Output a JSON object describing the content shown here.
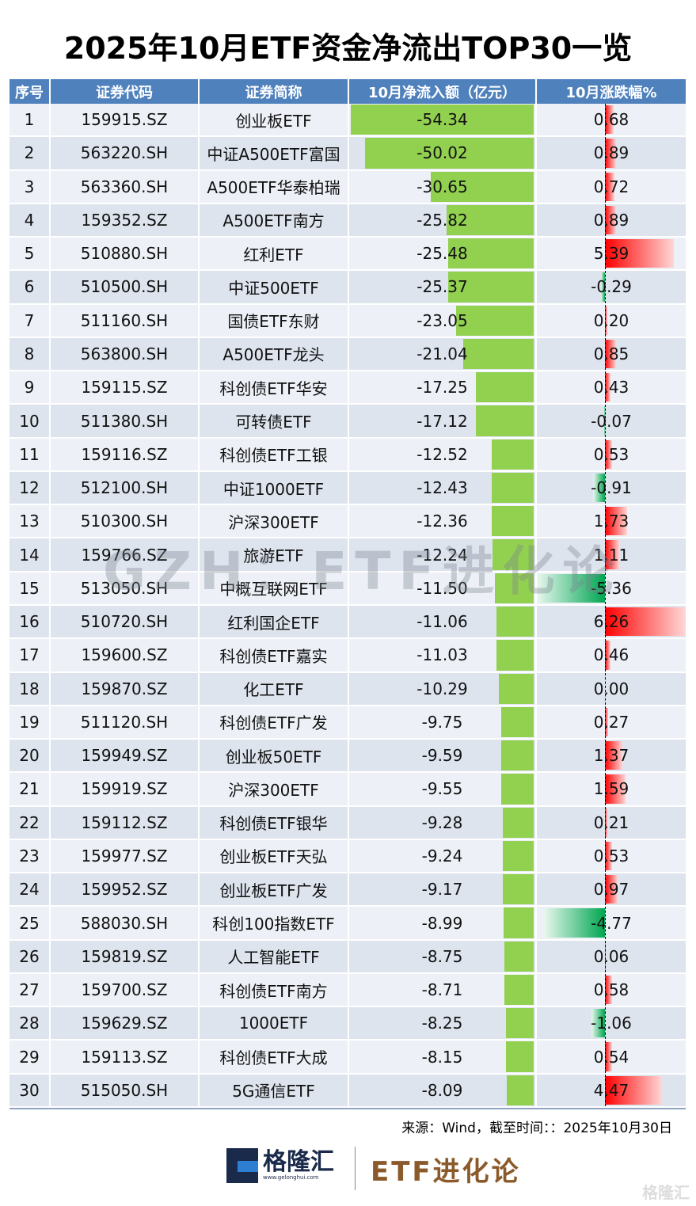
{
  "title": "2025年10月ETF资金净流出TOP30一览",
  "headers": [
    "序号",
    "证券代码",
    "证券简称",
    "10月净流入额（亿元）",
    "10月涨跌幅%"
  ],
  "rows": [
    {
      "rank": "1",
      "code": "159915.SZ",
      "name": "创业板ETF",
      "flow": -54.34,
      "chg": 0.68
    },
    {
      "rank": "2",
      "code": "563220.SH",
      "name": "中证A500ETF富国",
      "flow": -50.02,
      "chg": 0.89
    },
    {
      "rank": "3",
      "code": "563360.SH",
      "name": "A500ETF华泰柏瑞",
      "flow": -30.65,
      "chg": 0.72
    },
    {
      "rank": "4",
      "code": "159352.SZ",
      "name": "A500ETF南方",
      "flow": -25.82,
      "chg": 0.89
    },
    {
      "rank": "5",
      "code": "510880.SH",
      "name": "红利ETF",
      "flow": -25.48,
      "chg": 5.39
    },
    {
      "rank": "6",
      "code": "510500.SH",
      "name": "中证500ETF",
      "flow": -25.37,
      "chg": -0.29
    },
    {
      "rank": "7",
      "code": "511160.SH",
      "name": "国债ETF东财",
      "flow": -23.05,
      "chg": 0.2
    },
    {
      "rank": "8",
      "code": "563800.SH",
      "name": "A500ETF龙头",
      "flow": -21.04,
      "chg": 0.85
    },
    {
      "rank": "9",
      "code": "159115.SZ",
      "name": "科创债ETF华安",
      "flow": -17.25,
      "chg": 0.43
    },
    {
      "rank": "10",
      "code": "511380.SH",
      "name": "可转债ETF",
      "flow": -17.12,
      "chg": -0.07
    },
    {
      "rank": "11",
      "code": "159116.SZ",
      "name": "科创债ETF工银",
      "flow": -12.52,
      "chg": 0.53
    },
    {
      "rank": "12",
      "code": "512100.SH",
      "name": "中证1000ETF",
      "flow": -12.43,
      "chg": -0.91
    },
    {
      "rank": "13",
      "code": "510300.SH",
      "name": "沪深300ETF",
      "flow": -12.36,
      "chg": 1.73
    },
    {
      "rank": "14",
      "code": "159766.SZ",
      "name": "旅游ETF",
      "flow": -12.24,
      "chg": 1.11
    },
    {
      "rank": "15",
      "code": "513050.SH",
      "name": "中概互联网ETF",
      "flow": -11.5,
      "chg": -5.36
    },
    {
      "rank": "16",
      "code": "510720.SH",
      "name": "红利国企ETF",
      "flow": -11.06,
      "chg": 6.26
    },
    {
      "rank": "17",
      "code": "159600.SZ",
      "name": "科创债ETF嘉实",
      "flow": -11.03,
      "chg": 0.46
    },
    {
      "rank": "18",
      "code": "159870.SZ",
      "name": "化工ETF",
      "flow": -10.29,
      "chg": 0.0
    },
    {
      "rank": "19",
      "code": "511120.SH",
      "name": "科创债ETF广发",
      "flow": -9.75,
      "chg": 0.27
    },
    {
      "rank": "20",
      "code": "159949.SZ",
      "name": "创业板50ETF",
      "flow": -9.59,
      "chg": 1.37
    },
    {
      "rank": "21",
      "code": "159919.SZ",
      "name": "沪深300ETF",
      "flow": -9.55,
      "chg": 1.59
    },
    {
      "rank": "22",
      "code": "159112.SZ",
      "name": "科创债ETF银华",
      "flow": -9.28,
      "chg": 0.21
    },
    {
      "rank": "23",
      "code": "159977.SZ",
      "name": "创业板ETF天弘",
      "flow": -9.24,
      "chg": 0.53
    },
    {
      "rank": "24",
      "code": "159952.SZ",
      "name": "创业板ETF广发",
      "flow": -9.17,
      "chg": 0.97
    },
    {
      "rank": "25",
      "code": "588030.SH",
      "name": "科创100指数ETF",
      "flow": -8.99,
      "chg": -4.77
    },
    {
      "rank": "26",
      "code": "159819.SZ",
      "name": "人工智能ETF",
      "flow": -8.75,
      "chg": 0.06
    },
    {
      "rank": "27",
      "code": "159700.SZ",
      "name": "科创债ETF南方",
      "flow": -8.71,
      "chg": 0.58
    },
    {
      "rank": "28",
      "code": "159629.SZ",
      "name": "1000ETF",
      "flow": -8.25,
      "chg": -1.06
    },
    {
      "rank": "29",
      "code": "159113.SZ",
      "name": "科创债ETF大成",
      "flow": -8.15,
      "chg": 0.54
    },
    {
      "rank": "30",
      "code": "515050.SH",
      "name": "5G通信ETF",
      "flow": -8.09,
      "chg": 4.47
    }
  ],
  "source": "来源：Wind，截至时间：：2025年10月30日",
  "watermark": "GZH：ETF进化论",
  "logo": {
    "name": "格隆汇",
    "url": "www.gelonghui.com"
  },
  "brand": "ETF进化论",
  "corner_mark": "格隆汇",
  "colors": {
    "header": "#4f81bd",
    "flow_bar": "#92d050",
    "up": "#ff0000",
    "down": "#00a651"
  }
}
